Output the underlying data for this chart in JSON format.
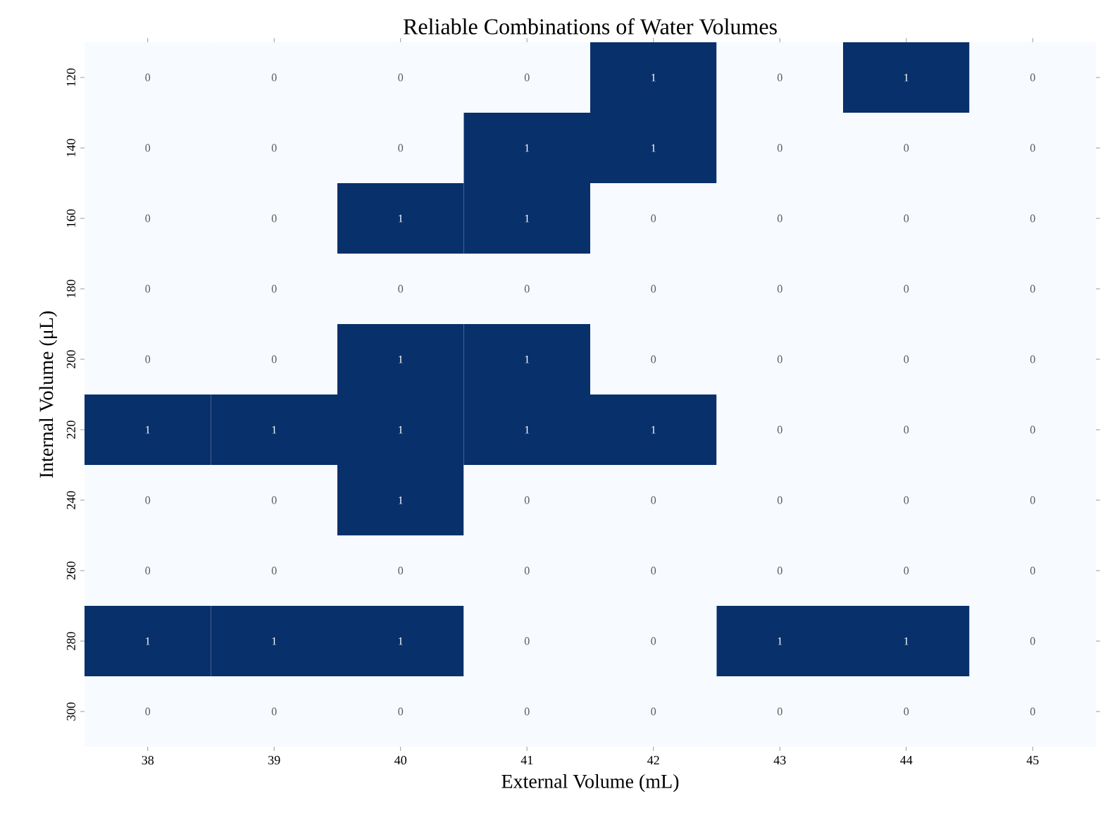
{
  "chart_data": {
    "type": "heatmap",
    "title": "Reliable Combinations of Water Volumes",
    "xlabel": "External Volume (mL)",
    "ylabel": "Internal Volume (μL)",
    "categories": [
      "38",
      "39",
      "40",
      "41",
      "42",
      "43",
      "44",
      "45"
    ],
    "y_categories": [
      "120",
      "140",
      "160",
      "180",
      "200",
      "220",
      "240",
      "260",
      "280",
      "300"
    ],
    "cells": [
      [
        0,
        0,
        0,
        0,
        1,
        0,
        1,
        0
      ],
      [
        0,
        0,
        0,
        1,
        1,
        0,
        0,
        0
      ],
      [
        0,
        0,
        1,
        1,
        0,
        0,
        0,
        0
      ],
      [
        0,
        0,
        0,
        0,
        0,
        0,
        0,
        0
      ],
      [
        0,
        0,
        1,
        1,
        0,
        0,
        0,
        0
      ],
      [
        1,
        1,
        1,
        1,
        1,
        0,
        0,
        0
      ],
      [
        0,
        0,
        1,
        0,
        0,
        0,
        0,
        0
      ],
      [
        0,
        0,
        0,
        0,
        0,
        0,
        0,
        0
      ],
      [
        1,
        1,
        1,
        0,
        0,
        1,
        1,
        0
      ],
      [
        0,
        0,
        0,
        0,
        0,
        0,
        0,
        0
      ]
    ],
    "data_labels": true
  }
}
